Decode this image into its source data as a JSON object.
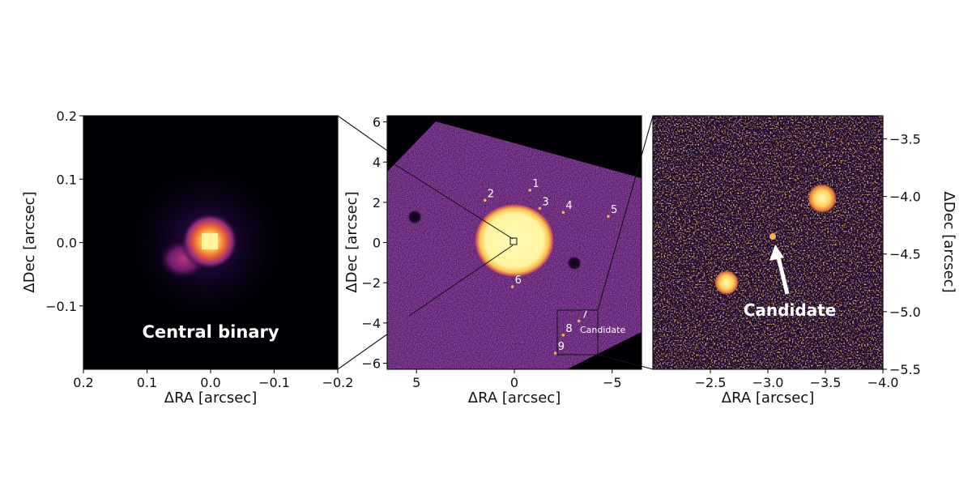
{
  "figure": {
    "panels": [
      {
        "id": "left",
        "xlabel": "ΔRA [arcsec]",
        "ylabel": "ΔDec [arcsec]",
        "xlim": [
          0.2,
          -0.2
        ],
        "ylim": [
          -0.2,
          0.2
        ],
        "xticks": [
          0.2,
          0.1,
          0.0,
          -0.1,
          -0.2
        ],
        "yticks": [
          0.2,
          0.1,
          0.0,
          -0.1
        ],
        "xtick_labels": [
          "0.2",
          "0.1",
          "0.0",
          "−0.1",
          "−0.2"
        ],
        "ytick_labels": [
          "0.2",
          "0.1",
          "0.0",
          "−0.1"
        ],
        "annotation": "Central binary"
      },
      {
        "id": "middle",
        "xlabel": "ΔRA [arcsec]",
        "ylabel": "ΔDec [arcsec]",
        "xlim": [
          6.5,
          -6.5
        ],
        "ylim": [
          -6.3,
          6.3
        ],
        "xticks": [
          5,
          0,
          -5
        ],
        "yticks": [
          6,
          4,
          2,
          0,
          -2,
          -4,
          -6
        ],
        "xtick_labels": [
          "5",
          "0",
          "−5"
        ],
        "ytick_labels": [
          "6",
          "4",
          "2",
          "0",
          "−2",
          "−4",
          "−6"
        ],
        "sources": [
          {
            "label": "1",
            "ra": -0.8,
            "dec": 2.6
          },
          {
            "label": "2",
            "ra": 1.5,
            "dec": 2.1
          },
          {
            "label": "3",
            "ra": -1.3,
            "dec": 1.7
          },
          {
            "label": "4",
            "ra": -2.5,
            "dec": 1.5
          },
          {
            "label": "5",
            "ra": -4.8,
            "dec": 1.3
          },
          {
            "label": "6",
            "ra": 0.1,
            "dec": -2.2
          },
          {
            "label": "7",
            "ra": -3.3,
            "dec": -3.9
          },
          {
            "label": "8",
            "ra": -2.5,
            "dec": -4.6
          },
          {
            "label": "9",
            "ra": -2.1,
            "dec": -5.5
          }
        ],
        "candidate_label": "Candidate"
      },
      {
        "id": "right",
        "xlabel": "ΔRA [arcsec]",
        "ylabel": "ΔDec [arcsec]",
        "xlim": [
          -2.0,
          -4.0
        ],
        "ylim": [
          -5.5,
          -3.3
        ],
        "xticks": [
          -2.5,
          -3.0,
          -3.5,
          -4.0
        ],
        "yticks": [
          -3.5,
          -4.0,
          -4.5,
          -5.0,
          -5.5
        ],
        "xtick_labels": [
          "−2.5",
          "−3.0",
          "−3.5",
          "−4.0"
        ],
        "ytick_labels": [
          "−3.5",
          "−4.0",
          "−4.5",
          "−5.0",
          "−5.5"
        ],
        "annotation": "Candidate"
      }
    ]
  },
  "colors": {
    "background": "#ffffff",
    "axis": "#111111",
    "sky_dark": "#000004",
    "field_purple": "#5b1f73",
    "star_core": "#fffcba",
    "star_orange": "#f89540",
    "annotation_text": "#ffffff"
  }
}
